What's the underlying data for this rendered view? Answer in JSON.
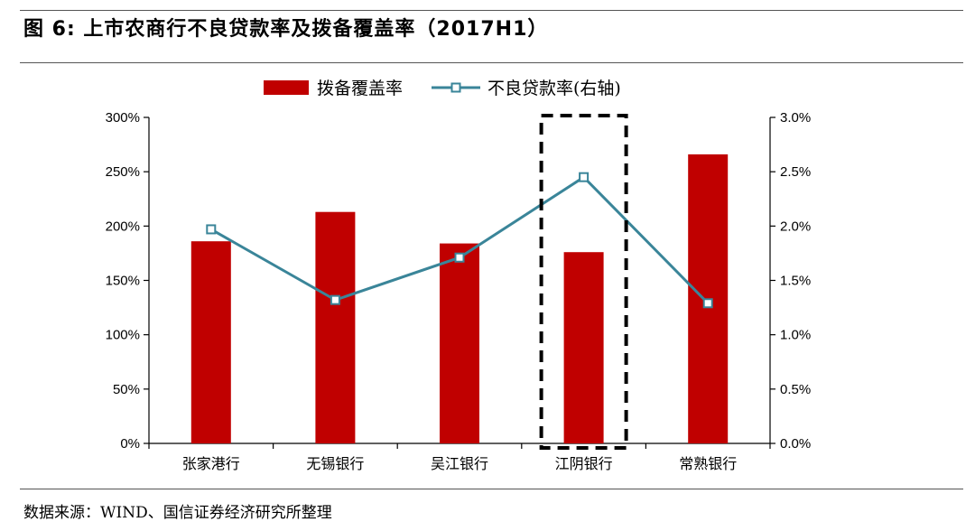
{
  "header": {
    "title": "图 6: 上市农商行不良贷款率及拨备覆盖率（2017H1）"
  },
  "footer": {
    "source": "数据来源：WIND、国信证券经济研究所整理"
  },
  "colors": {
    "bar": "#c00000",
    "line": "#3a8599",
    "marker_fill": "#ffffff"
  },
  "chart_data": {
    "type": "bar",
    "title": "",
    "categories": [
      "张家港行",
      "无锡银行",
      "吴江银行",
      "江阴银行",
      "常熟银行"
    ],
    "series": [
      {
        "name": "拨备覆盖率",
        "type": "bar",
        "axis": "left",
        "values": [
          186,
          213,
          184,
          176,
          266
        ]
      },
      {
        "name": "不良贷款率(右轴)",
        "type": "line",
        "axis": "right",
        "values": [
          1.97,
          1.32,
          1.71,
          2.45,
          1.29
        ]
      }
    ],
    "y_left": {
      "min": 0,
      "max": 300,
      "step": 50,
      "tick_labels": [
        "0%",
        "50%",
        "100%",
        "150%",
        "200%",
        "250%",
        "300%"
      ]
    },
    "y_right": {
      "min": 0,
      "max": 3.0,
      "step": 0.5,
      "tick_labels": [
        "0.0%",
        "0.5%",
        "1.0%",
        "1.5%",
        "2.0%",
        "2.5%",
        "3.0%"
      ]
    },
    "highlight_category": "江阴银行",
    "legend_position": "top-center",
    "grid": false
  }
}
